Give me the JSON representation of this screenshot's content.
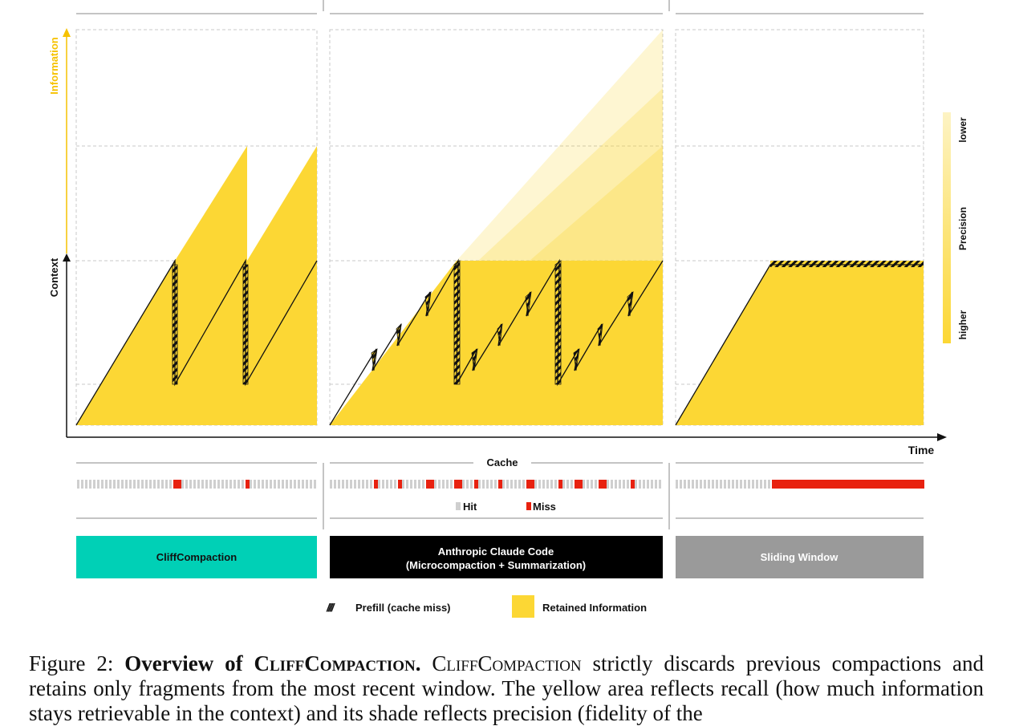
{
  "axes": {
    "y_info_label": "Information",
    "y_context_label": "Context",
    "x_time_label": "Time"
  },
  "precision_scale": {
    "label": "Precision",
    "top_label": "lower",
    "bottom_label": "higher"
  },
  "cache": {
    "label": "Cache",
    "hit_label": "Hit",
    "miss_label": "Miss",
    "colors": {
      "hit": "#cfcfcf",
      "miss": "#e8210f"
    }
  },
  "strategies": [
    {
      "name": "CliffCompaction",
      "color": "#00d0b6",
      "text_color": "#111111"
    },
    {
      "name": "Anthropic Claude Code",
      "subname": "(Microcompaction + Summarization)",
      "color": "#000000",
      "text_color": "#ffffff"
    },
    {
      "name": "Sliding Window",
      "color": "#9a9a9a",
      "text_color": "#ffffff"
    }
  ],
  "legend": {
    "prefill_icon": "////",
    "prefill_label": "Prefill (cache miss)",
    "retained_label": "Retained Information",
    "retained_color": "#fcd734"
  },
  "caption": {
    "prefix": "Figure 2:",
    "title_bold": "Overview of",
    "title_sc": "CliffCompaction.",
    "sc_name": "CliffCompaction",
    "text1": "strictly discards previous compactions and retains only fragments from the most recent window. The yellow area reflects recall (how much information stays retrievable in the context) and its shade reflects precision (fidelity of the"
  }
}
